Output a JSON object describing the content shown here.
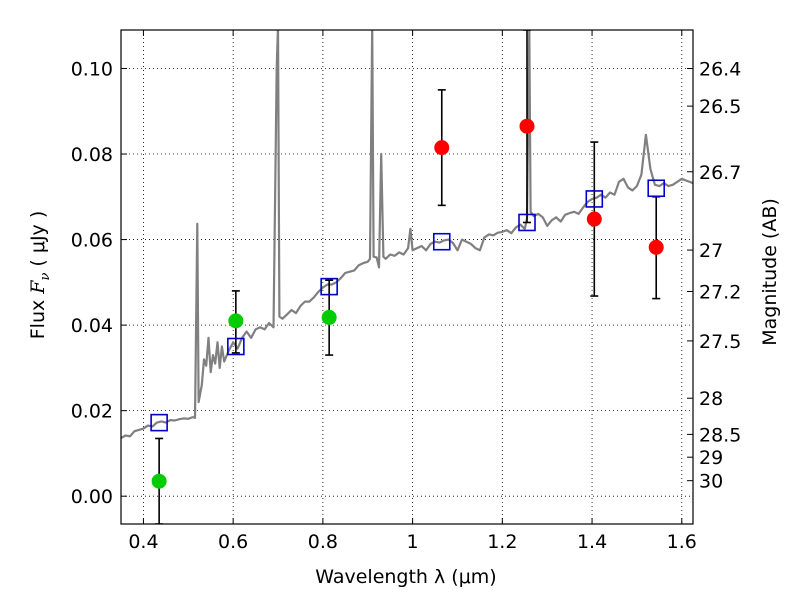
{
  "chart_data": {
    "type": "scatter",
    "xlabel": "Wavelength  λ (μm)",
    "ylabel": "Flux  Fν  ( μJy )",
    "ylabel_parts": {
      "pre": "Flux  ",
      "symbol": "F",
      "sub": "ν",
      "post": "  ( μJy )"
    },
    "y2label": "Magnitude (AB)",
    "xlim": [
      0.35,
      1.625
    ],
    "ylim": [
      -0.0065,
      0.109
    ],
    "grid": true,
    "x_ticks": [
      {
        "value": 0.4,
        "label": "0.4"
      },
      {
        "value": 0.6,
        "label": "0.6"
      },
      {
        "value": 0.8,
        "label": "0.8"
      },
      {
        "value": 1.0,
        "label": "1"
      },
      {
        "value": 1.2,
        "label": "1.2"
      },
      {
        "value": 1.4,
        "label": "1.4"
      },
      {
        "value": 1.6,
        "label": "1.6"
      }
    ],
    "y_ticks": [
      {
        "value": 0.0,
        "label": "0.00"
      },
      {
        "value": 0.02,
        "label": "0.02"
      },
      {
        "value": 0.04,
        "label": "0.04"
      },
      {
        "value": 0.06,
        "label": "0.06"
      },
      {
        "value": 0.08,
        "label": "0.08"
      },
      {
        "value": 0.1,
        "label": "0.10"
      }
    ],
    "magnitude_ticks": [
      "26.4",
      "26.5",
      "26.7",
      "27",
      "27.2",
      "27.5",
      "28",
      "28.5",
      "29",
      "30"
    ],
    "magnitude_zero_point": 23.9,
    "series": [
      {
        "type": "line",
        "color": "#808080",
        "points": [
          [
            0.35,
            0.0136
          ],
          [
            0.36,
            0.0142
          ],
          [
            0.37,
            0.014
          ],
          [
            0.38,
            0.0152
          ],
          [
            0.39,
            0.0155
          ],
          [
            0.4,
            0.0158
          ],
          [
            0.41,
            0.0165
          ],
          [
            0.42,
            0.0163
          ],
          [
            0.43,
            0.0172
          ],
          [
            0.44,
            0.0175
          ],
          [
            0.45,
            0.0172
          ],
          [
            0.46,
            0.0178
          ],
          [
            0.47,
            0.0177
          ],
          [
            0.48,
            0.018
          ],
          [
            0.49,
            0.0182
          ],
          [
            0.5,
            0.0181
          ],
          [
            0.51,
            0.0185
          ],
          [
            0.515,
            0.0183
          ],
          [
            0.52,
            0.0637
          ],
          [
            0.523,
            0.022
          ],
          [
            0.53,
            0.026
          ],
          [
            0.535,
            0.032
          ],
          [
            0.54,
            0.0305
          ],
          [
            0.545,
            0.037
          ],
          [
            0.55,
            0.029
          ],
          [
            0.555,
            0.033
          ],
          [
            0.56,
            0.031
          ],
          [
            0.565,
            0.036
          ],
          [
            0.57,
            0.03
          ],
          [
            0.575,
            0.035
          ],
          [
            0.58,
            0.0315
          ],
          [
            0.59,
            0.034
          ],
          [
            0.6,
            0.036
          ],
          [
            0.61,
            0.0345
          ],
          [
            0.62,
            0.037
          ],
          [
            0.63,
            0.0385
          ],
          [
            0.64,
            0.037
          ],
          [
            0.65,
            0.039
          ],
          [
            0.66,
            0.0395
          ],
          [
            0.67,
            0.039
          ],
          [
            0.68,
            0.0405
          ],
          [
            0.69,
            0.0395
          ],
          [
            0.697,
            0.1
          ],
          [
            0.7,
            0.11
          ],
          [
            0.703,
            0.042
          ],
          [
            0.71,
            0.0415
          ],
          [
            0.72,
            0.0425
          ],
          [
            0.73,
            0.0435
          ],
          [
            0.74,
            0.0428
          ],
          [
            0.75,
            0.0445
          ],
          [
            0.76,
            0.0455
          ],
          [
            0.77,
            0.0455
          ],
          [
            0.78,
            0.0465
          ],
          [
            0.79,
            0.0478
          ],
          [
            0.8,
            0.0488
          ],
          [
            0.81,
            0.0495
          ],
          [
            0.82,
            0.0495
          ],
          [
            0.83,
            0.05
          ],
          [
            0.84,
            0.051
          ],
          [
            0.85,
            0.0522
          ],
          [
            0.86,
            0.0525
          ],
          [
            0.87,
            0.0528
          ],
          [
            0.88,
            0.054
          ],
          [
            0.89,
            0.0545
          ],
          [
            0.9,
            0.0548
          ],
          [
            0.905,
            0.0555
          ],
          [
            0.91,
            0.11
          ],
          [
            0.913,
            0.056
          ],
          [
            0.92,
            0.0558
          ],
          [
            0.925,
            0.0535
          ],
          [
            0.93,
            0.08
          ],
          [
            0.935,
            0.056
          ],
          [
            0.94,
            0.0555
          ],
          [
            0.95,
            0.0565
          ],
          [
            0.96,
            0.0562
          ],
          [
            0.97,
            0.057
          ],
          [
            0.98,
            0.0565
          ],
          [
            0.99,
            0.058
          ],
          [
            0.995,
            0.0625
          ],
          [
            1.0,
            0.0575
          ],
          [
            1.01,
            0.058
          ],
          [
            1.02,
            0.0585
          ],
          [
            1.03,
            0.0575
          ],
          [
            1.04,
            0.059
          ],
          [
            1.05,
            0.0595
          ],
          [
            1.06,
            0.0593
          ],
          [
            1.07,
            0.0598
          ],
          [
            1.08,
            0.06
          ],
          [
            1.09,
            0.0592
          ],
          [
            1.1,
            0.0575
          ],
          [
            1.11,
            0.06
          ],
          [
            1.12,
            0.0595
          ],
          [
            1.13,
            0.059
          ],
          [
            1.14,
            0.058
          ],
          [
            1.15,
            0.0575
          ],
          [
            1.16,
            0.0605
          ],
          [
            1.17,
            0.0612
          ],
          [
            1.18,
            0.061
          ],
          [
            1.19,
            0.0616
          ],
          [
            1.2,
            0.0618
          ],
          [
            1.21,
            0.0622
          ],
          [
            1.22,
            0.0615
          ],
          [
            1.23,
            0.0628
          ],
          [
            1.24,
            0.0635
          ],
          [
            1.25,
            0.0625
          ],
          [
            1.255,
            0.065
          ],
          [
            1.26,
            0.1095
          ],
          [
            1.263,
            0.0665
          ],
          [
            1.27,
            0.0655
          ],
          [
            1.28,
            0.066
          ],
          [
            1.29,
            0.0652
          ],
          [
            1.3,
            0.0632
          ],
          [
            1.31,
            0.0645
          ],
          [
            1.32,
            0.0652
          ],
          [
            1.33,
            0.0642
          ],
          [
            1.34,
            0.0658
          ],
          [
            1.35,
            0.0662
          ],
          [
            1.36,
            0.0665
          ],
          [
            1.37,
            0.066
          ],
          [
            1.38,
            0.0675
          ],
          [
            1.39,
            0.0688
          ],
          [
            1.4,
            0.0695
          ],
          [
            1.41,
            0.0698
          ],
          [
            1.42,
            0.0705
          ],
          [
            1.43,
            0.0698
          ],
          [
            1.44,
            0.071
          ],
          [
            1.45,
            0.0705
          ],
          [
            1.46,
            0.0735
          ],
          [
            1.47,
            0.0742
          ],
          [
            1.48,
            0.0722
          ],
          [
            1.49,
            0.0715
          ],
          [
            1.5,
            0.0725
          ],
          [
            1.51,
            0.0752
          ],
          [
            1.52,
            0.0845
          ],
          [
            1.53,
            0.0765
          ],
          [
            1.54,
            0.0728
          ],
          [
            1.55,
            0.0725
          ],
          [
            1.56,
            0.0732
          ],
          [
            1.57,
            0.0725
          ],
          [
            1.58,
            0.0728
          ],
          [
            1.59,
            0.0735
          ],
          [
            1.6,
            0.0742
          ],
          [
            1.61,
            0.0738
          ],
          [
            1.625,
            0.0732
          ]
        ]
      },
      {
        "type": "points",
        "marker": "square",
        "color": "#0000cc",
        "points": [
          [
            0.435,
            0.0172
          ],
          [
            0.606,
            0.035
          ],
          [
            0.814,
            0.049
          ],
          [
            1.065,
            0.0595
          ],
          [
            1.255,
            0.064
          ],
          [
            1.405,
            0.0695
          ],
          [
            1.543,
            0.072
          ]
        ]
      },
      {
        "type": "points",
        "marker": "circle",
        "color": "#00cc00",
        "points": [
          [
            0.435,
            0.0035
          ],
          [
            0.606,
            0.041
          ],
          [
            0.814,
            0.0418
          ]
        ]
      },
      {
        "type": "points",
        "marker": "circle",
        "color": "#ff0000",
        "points": [
          [
            1.065,
            0.0815
          ],
          [
            1.255,
            0.0865
          ],
          [
            1.405,
            0.0648
          ],
          [
            1.543,
            0.0582
          ]
        ]
      },
      {
        "type": "errorbars",
        "color": "#000000",
        "points": [
          {
            "x": 0.435,
            "y": 0.0035,
            "lo": -0.0065,
            "hi": 0.0135
          },
          {
            "x": 0.606,
            "y": 0.041,
            "lo": 0.0335,
            "hi": 0.048
          },
          {
            "x": 0.814,
            "y": 0.0418,
            "lo": 0.033,
            "hi": 0.0505
          },
          {
            "x": 1.065,
            "y": 0.0815,
            "lo": 0.068,
            "hi": 0.095
          },
          {
            "x": 1.255,
            "y": 0.0865,
            "lo": 0.064,
            "hi": 0.109
          },
          {
            "x": 1.405,
            "y": 0.0648,
            "lo": 0.0468,
            "hi": 0.0828
          },
          {
            "x": 1.543,
            "y": 0.0582,
            "lo": 0.0462,
            "hi": 0.07
          }
        ]
      }
    ]
  }
}
